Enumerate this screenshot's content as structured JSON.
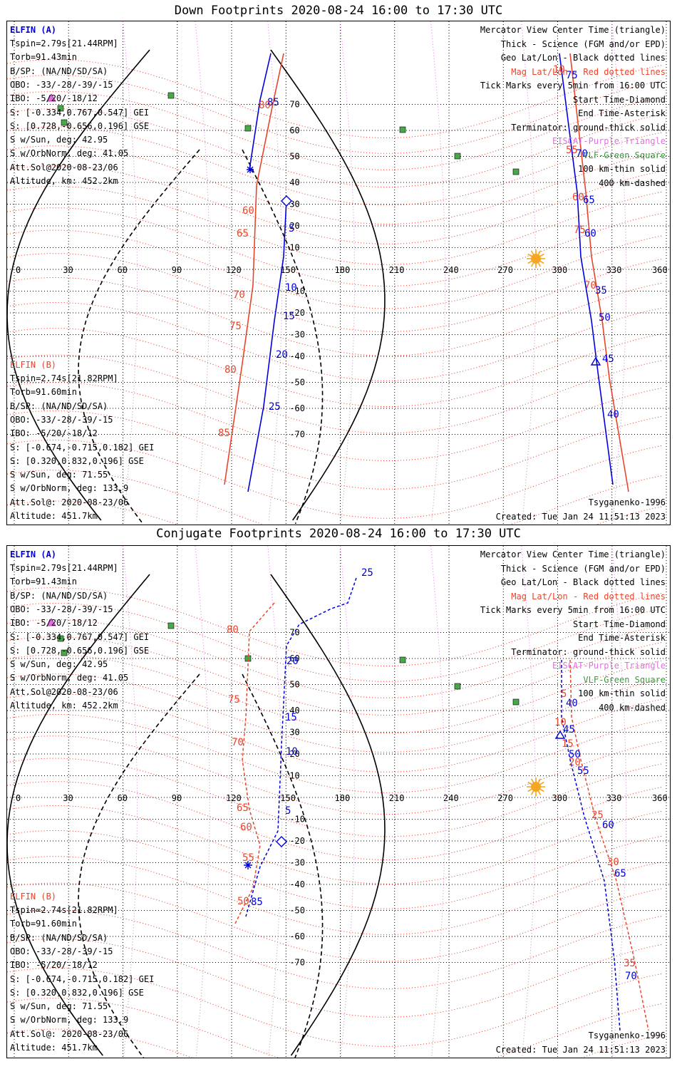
{
  "panels": [
    {
      "title": "Down Footprints 2020-08-24 16:00 to 17:30 UTC",
      "elfin_a": {
        "header": "ELFIN (A)",
        "lines": [
          "Tspin=2.79s[21.44RPM]",
          "Torb=91.43min",
          "B/SP: (NA/ND/SD/SA)",
          "OBO: -33/-28/-39/-15",
          "IBO: -5/20/-18/12",
          "S: [-0.334,0.767,0.547] GEI",
          "S: [0.728,-0.656,0.196] GSE",
          "S w/Sun, deg: 42.95",
          "S w/OrbNorm, deg: 41.05",
          "Att.Sol@2020-08-23/06",
          "Altitude, km: 452.2km"
        ]
      },
      "elfin_b": {
        "header": "ELFIN (B)",
        "lines": [
          "Tspin=2.74s[21.82RPM]",
          "Torb=91.60min",
          "B/SP: (NA/ND/SD/SA)",
          "OBO: -33/-28/-39/-15",
          "IBO: -5/20/-18/12",
          "S: [-0.674,-0.715,0.182] GEI",
          "S: [0.320,0.832,0.196] GSE",
          "S w/Sun, deg: 71.55",
          "S w/OrbNorm, deg: 133.9",
          "Att.Sol@: 2020-08-23/06",
          "Altitude: 451.7km"
        ]
      },
      "legend": [
        {
          "text": "Mercator View Center Time (triangle)",
          "color": "#000000"
        },
        {
          "text": "Thick - Science (FGM and/or EPD)",
          "color": "#000000"
        },
        {
          "text": "Geo Lat/Lon - Black dotted lines",
          "color": "#000000"
        },
        {
          "text": "Mag Lat/Lon - Red dotted lines",
          "color": "#e8452c"
        },
        {
          "text": "Tick Marks every 5min from 16:00 UTC",
          "color": "#000000"
        },
        {
          "text": "Start Time-Diamond",
          "color": "#000000"
        },
        {
          "text": "End Time-Asterisk",
          "color": "#000000"
        },
        {
          "text": "Terminator: ground-thick solid",
          "color": "#000000"
        },
        {
          "text": "EISCAT-Purple Triangle",
          "color": "#e070e0"
        },
        {
          "text": "VLF-Green Square",
          "color": "#3a9a3a"
        },
        {
          "text": "100 km-thin solid",
          "color": "#000000"
        },
        {
          "text": "400 km-dashed",
          "color": "#000000"
        }
      ],
      "model": "Tsyganenko-1996",
      "created": "Created: Tue Jan 24 11:51:13 2023",
      "lon_ticks": [
        "0",
        "30",
        "60",
        "90",
        "120",
        "150",
        "180",
        "210",
        "240",
        "270",
        "300",
        "330",
        "360"
      ],
      "lat_ticks": [
        "70",
        "60",
        "50",
        "40",
        "30",
        "20",
        "10",
        "-10",
        "-20",
        "-30",
        "-40",
        "-50",
        "-60",
        "-70"
      ],
      "track_labels": {
        "a_geo": [
          "85",
          "5",
          "10",
          "15",
          "20",
          "25",
          "75",
          "70",
          "65",
          "60",
          "55",
          "50",
          "45",
          "40",
          "35"
        ],
        "a_mag": [
          "80",
          "85",
          "60",
          "65",
          "70",
          "75",
          "80",
          "85",
          "10",
          "55",
          "60",
          "65",
          "70",
          "75"
        ]
      }
    },
    {
      "title": "Conjugate Footprints 2020-08-24 16:00 to 17:30 UTC",
      "elfin_a": {
        "header": "ELFIN (A)",
        "lines": [
          "Tspin=2.79s[21.44RPM]",
          "Torb=91.43min",
          "B/SP: (NA/ND/SD/SA)",
          "OBO: -33/-28/-39/-15",
          "IBO: -5/20/-18/12",
          "S: [-0.334,0.767,0.547] GEI",
          "S: [0.728,-0.656,0.196] GSE",
          "S w/Sun, deg: 42.95",
          "S w/OrbNorm, deg: 41.05",
          "Att.Sol@2020-08-23/06",
          "Altitude, km: 452.2km"
        ]
      },
      "elfin_b": {
        "header": "ELFIN (B)",
        "lines": [
          "Tspin=2.74s[21.82RPM]",
          "Torb=91.60min",
          "B/SP: (NA/ND/SD/SA)",
          "OBO: -33/-28/-39/-15",
          "IBO: -5/20/-18/12",
          "S: [-0.674,-0.715,0.182] GEI",
          "S: [0.320,0.832,0.196] GSE",
          "S w/Sun, deg: 71.55",
          "S w/OrbNorm, deg: 133.9",
          "Att.Sol@: 2020-08-23/06",
          "Altitude: 451.7km"
        ]
      },
      "legend": [
        {
          "text": "Mercator View Center Time (triangle)",
          "color": "#000000"
        },
        {
          "text": "Thick - Science (FGM and/or EPD)",
          "color": "#000000"
        },
        {
          "text": "Geo Lat/Lon - Black dotted lines",
          "color": "#000000"
        },
        {
          "text": "Mag Lat/Lon - Red dotted lines",
          "color": "#e8452c"
        },
        {
          "text": "Tick Marks every 5min from 16:00 UTC",
          "color": "#000000"
        },
        {
          "text": "Start Time-Diamond",
          "color": "#000000"
        },
        {
          "text": "End Time-Asterisk",
          "color": "#000000"
        },
        {
          "text": "Terminator: ground-thick solid",
          "color": "#000000"
        },
        {
          "text": "EISCAT-Purple Triangle",
          "color": "#e070e0"
        },
        {
          "text": "VLF-Green Square",
          "color": "#3a9a3a"
        },
        {
          "text": "100 km-thin solid",
          "color": "#000000"
        },
        {
          "text": "400 km-dashed",
          "color": "#000000"
        }
      ],
      "model": "Tsyganenko-1996",
      "created": "Created: Tue Jan 24 11:51:13 2023",
      "lon_ticks": [
        "0",
        "30",
        "60",
        "90",
        "120",
        "150",
        "180",
        "210",
        "240",
        "270",
        "300",
        "330",
        "360"
      ],
      "lat_ticks": [
        "70",
        "60",
        "50",
        "40",
        "30",
        "20",
        "10",
        "-10",
        "-20",
        "-30",
        "-40",
        "-50",
        "-60",
        "-70"
      ]
    }
  ],
  "colors": {
    "spacecraft_a": "#0000dd",
    "spacecraft_b": "#e8452c",
    "grid": "#000000",
    "terminator": "#000000",
    "eiscat": "#e070e0",
    "vlf": "#3a9a3a",
    "sun": "#f5a623"
  }
}
